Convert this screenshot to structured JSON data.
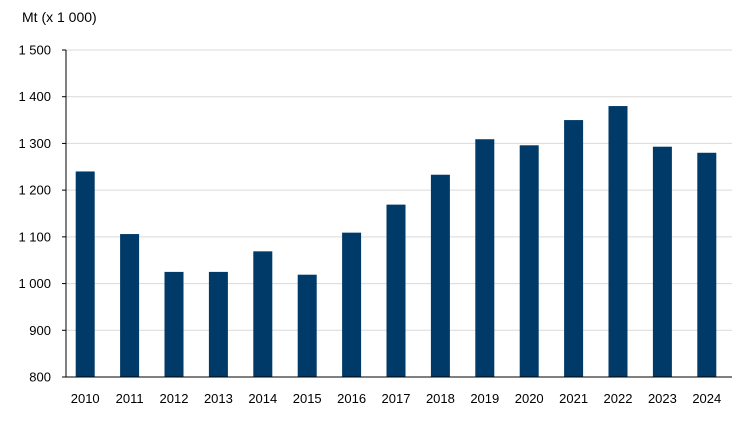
{
  "chart_data": {
    "type": "bar",
    "ylabel": "Mt (x 1 000)",
    "categories": [
      "2010",
      "2011",
      "2012",
      "2013",
      "2014",
      "2015",
      "2016",
      "2017",
      "2018",
      "2019",
      "2020",
      "2021",
      "2022",
      "2023",
      "2024"
    ],
    "values": [
      1240,
      1106,
      1025,
      1025,
      1069,
      1019,
      1109,
      1169,
      1233,
      1309,
      1296,
      1350,
      1380,
      1293,
      1280
    ],
    "ylim": [
      800,
      1500
    ],
    "yticks": [
      800,
      900,
      1000,
      1100,
      1200,
      1300,
      1400,
      1500
    ],
    "ytick_labels": [
      "800",
      "900",
      "1 000",
      "1 100",
      "1 200",
      "1 300",
      "1 400",
      "1 500"
    ],
    "grid": true,
    "legend": "none",
    "colors": {
      "bar": "#003A68",
      "grid": "#D9D9D9",
      "axis": "#000000"
    }
  }
}
